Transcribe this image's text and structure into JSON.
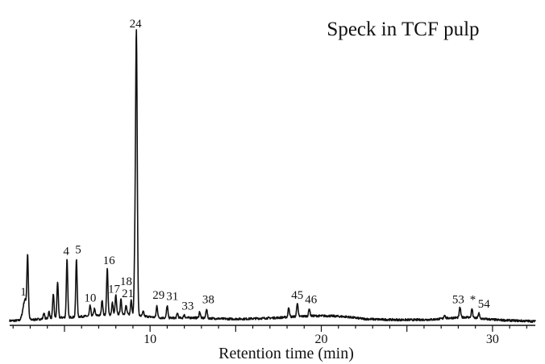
{
  "chart_data": {
    "type": "line",
    "title": "Speck in TCF pulp",
    "xlabel": "Retention time (min)",
    "ylabel": "",
    "xlim": [
      1.8,
      32.5
    ],
    "ylim": [
      0,
      100
    ],
    "xticks": [
      10,
      20,
      30
    ],
    "grid": false,
    "legend": "none",
    "colors": {
      "trace": "#111111",
      "axis": "#111111",
      "background": "#ffffff"
    },
    "baseline": [
      [
        1.8,
        1.0
      ],
      [
        2.6,
        1.1
      ],
      [
        3.5,
        1.5
      ],
      [
        4.5,
        2.0
      ],
      [
        5.5,
        2.2
      ],
      [
        6.5,
        2.6
      ],
      [
        7.5,
        3.0
      ],
      [
        8.5,
        3.3
      ],
      [
        9.5,
        2.6
      ],
      [
        10.5,
        2.0
      ],
      [
        11.5,
        1.9
      ],
      [
        12.5,
        2.0
      ],
      [
        13.5,
        1.8
      ],
      [
        14.5,
        1.6
      ],
      [
        15.5,
        1.6
      ],
      [
        16.5,
        1.8
      ],
      [
        17.5,
        2.0
      ],
      [
        18.5,
        2.4
      ],
      [
        19.5,
        2.6
      ],
      [
        20.5,
        2.6
      ],
      [
        21.5,
        2.3
      ],
      [
        22.5,
        1.6
      ],
      [
        23.5,
        1.4
      ],
      [
        24.5,
        1.3
      ],
      [
        25.5,
        1.3
      ],
      [
        26.5,
        1.4
      ],
      [
        27.5,
        1.9
      ],
      [
        28.5,
        2.2
      ],
      [
        29.5,
        1.6
      ],
      [
        30.5,
        1.2
      ],
      [
        31.5,
        1.0
      ],
      [
        32.5,
        0.8
      ]
    ],
    "peaks": [
      {
        "x": 2.7,
        "y": 8.0,
        "w": 0.12
      },
      {
        "x": 2.85,
        "y": 20.0,
        "w": 0.04
      },
      {
        "x": 3.8,
        "y": 3.5,
        "w": 0.04
      },
      {
        "x": 4.1,
        "y": 4.0,
        "w": 0.04
      },
      {
        "x": 4.35,
        "y": 10.0,
        "w": 0.04
      },
      {
        "x": 4.6,
        "y": 14.0,
        "w": 0.04
      },
      {
        "x": 5.15,
        "y": 21.5,
        "w": 0.04
      },
      {
        "x": 5.7,
        "y": 21.5,
        "w": 0.04
      },
      {
        "x": 6.5,
        "y": 6.0,
        "w": 0.04
      },
      {
        "x": 6.75,
        "y": 5.0,
        "w": 0.04
      },
      {
        "x": 7.2,
        "y": 8.0,
        "w": 0.04
      },
      {
        "x": 7.5,
        "y": 18.5,
        "w": 0.04
      },
      {
        "x": 7.8,
        "y": 7.0,
        "w": 0.04
      },
      {
        "x": 8.0,
        "y": 9.5,
        "w": 0.04
      },
      {
        "x": 8.3,
        "y": 8.0,
        "w": 0.04
      },
      {
        "x": 8.6,
        "y": 6.0,
        "w": 0.04
      },
      {
        "x": 8.9,
        "y": 8.0,
        "w": 0.04
      },
      {
        "x": 9.1,
        "y": 16.0,
        "w": 0.04
      },
      {
        "x": 9.2,
        "y": 97.0,
        "w": 0.05
      },
      {
        "x": 9.6,
        "y": 4.0,
        "w": 0.04
      },
      {
        "x": 10.4,
        "y": 6.0,
        "w": 0.04
      },
      {
        "x": 11.0,
        "y": 6.0,
        "w": 0.04
      },
      {
        "x": 11.6,
        "y": 3.5,
        "w": 0.04
      },
      {
        "x": 12.0,
        "y": 3.0,
        "w": 0.04
      },
      {
        "x": 12.9,
        "y": 4.0,
        "w": 0.04
      },
      {
        "x": 13.3,
        "y": 5.0,
        "w": 0.04
      },
      {
        "x": 18.1,
        "y": 5.5,
        "w": 0.04
      },
      {
        "x": 18.6,
        "y": 7.0,
        "w": 0.04
      },
      {
        "x": 19.3,
        "y": 5.0,
        "w": 0.04
      },
      {
        "x": 27.2,
        "y": 3.0,
        "w": 0.04
      },
      {
        "x": 28.1,
        "y": 5.5,
        "w": 0.04
      },
      {
        "x": 28.8,
        "y": 5.0,
        "w": 0.04
      },
      {
        "x": 29.2,
        "y": 3.5,
        "w": 0.04
      }
    ],
    "peak_labels": [
      {
        "text": "1",
        "x": 2.6,
        "y": 8.0
      },
      {
        "text": "4",
        "x": 5.1,
        "y": 21.5
      },
      {
        "text": "5",
        "x": 5.8,
        "y": 22.0
      },
      {
        "text": "10",
        "x": 6.5,
        "y": 6.0
      },
      {
        "text": "16",
        "x": 7.6,
        "y": 18.5
      },
      {
        "text": "17",
        "x": 7.9,
        "y": 9.0
      },
      {
        "text": "18",
        "x": 8.6,
        "y": 11.5
      },
      {
        "text": "21",
        "x": 8.7,
        "y": 7.5
      },
      {
        "text": "24",
        "x": 9.15,
        "y": 97.0
      },
      {
        "text": "29",
        "x": 10.5,
        "y": 7.0
      },
      {
        "text": "31",
        "x": 11.3,
        "y": 6.5
      },
      {
        "text": "33",
        "x": 12.2,
        "y": 3.3
      },
      {
        "text": "38",
        "x": 13.4,
        "y": 5.5
      },
      {
        "text": "45",
        "x": 18.6,
        "y": 7.0
      },
      {
        "text": "46",
        "x": 19.4,
        "y": 5.5
      },
      {
        "text": "53",
        "x": 28.0,
        "y": 5.5
      },
      {
        "text": "*",
        "x": 28.85,
        "y": 5.5
      },
      {
        "text": "54",
        "x": 29.5,
        "y": 4.0
      }
    ]
  }
}
